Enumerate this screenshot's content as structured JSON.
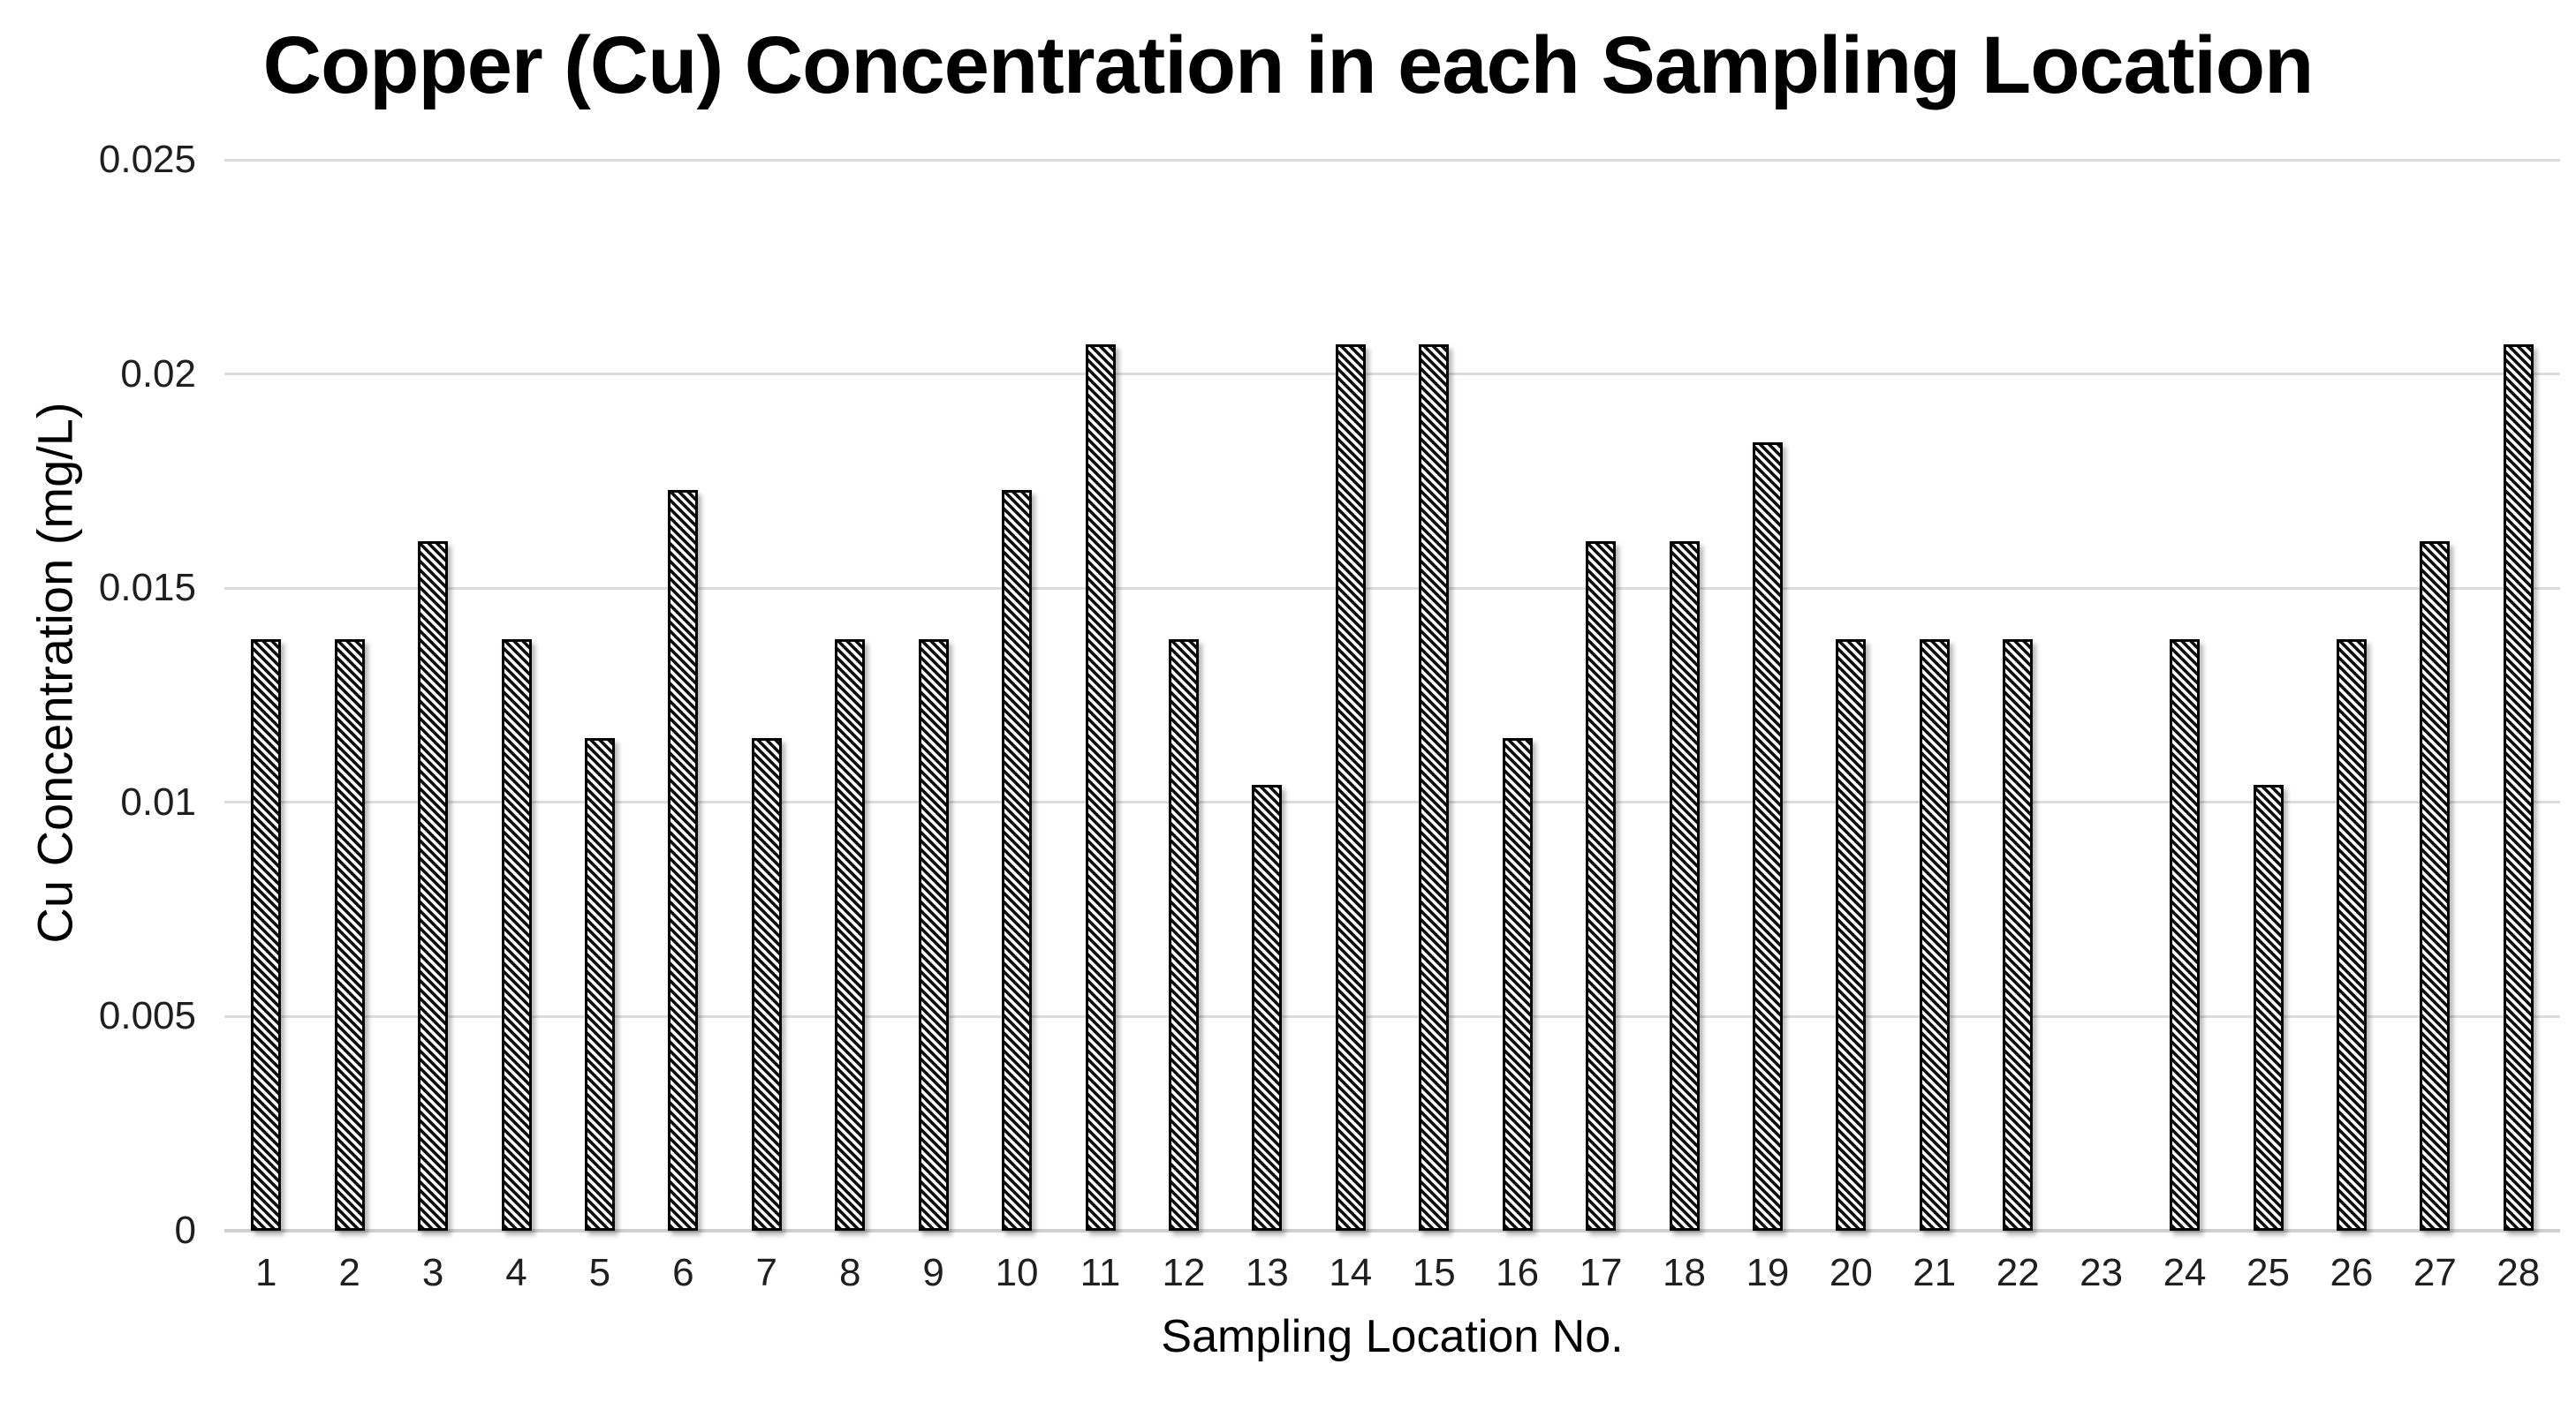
{
  "chart_data": {
    "type": "bar",
    "title": "Copper (Cu) Concentration in each Sampling Location",
    "xlabel": "Sampling Location No.",
    "ylabel": "Cu Concentration (mg/L)",
    "categories": [
      "1",
      "2",
      "3",
      "4",
      "5",
      "6",
      "7",
      "8",
      "9",
      "10",
      "11",
      "12",
      "13",
      "14",
      "15",
      "16",
      "17",
      "18",
      "19",
      "20",
      "21",
      "22",
      "23",
      "24",
      "25",
      "26",
      "27",
      "28"
    ],
    "values": [
      0.0138,
      0.0138,
      0.0161,
      0.0138,
      0.0115,
      0.0173,
      0.0115,
      0.0138,
      0.0138,
      0.0173,
      0.0207,
      0.0138,
      0.0104,
      0.0207,
      0.0207,
      0.0115,
      0.0161,
      0.0161,
      0.0184,
      0.0138,
      0.0138,
      0.0138,
      0,
      0.0138,
      0.0104,
      0.0138,
      0.0161,
      0.0207
    ],
    "ylim": [
      0,
      0.025
    ],
    "yticks": {
      "values": [
        0,
        0.005,
        0.01,
        0.015,
        0.02,
        0.025
      ],
      "labels": [
        "0",
        "0.005",
        "0.01",
        "0.015",
        "0.02",
        "0.025"
      ]
    },
    "grid": "horizontal-only",
    "legend": "none",
    "bar_fill": "diagonal-downward-hatch",
    "colors": {
      "hatch_foreground": "#0d0d0d",
      "hatch_background": "#fafafa",
      "bar_border": "#000000",
      "gridline": "#dcdcdc",
      "axis_line": "#cfcfcf",
      "tick_text": "#1f1f1f",
      "title_text": "#000000",
      "background": "#ffffff"
    }
  }
}
